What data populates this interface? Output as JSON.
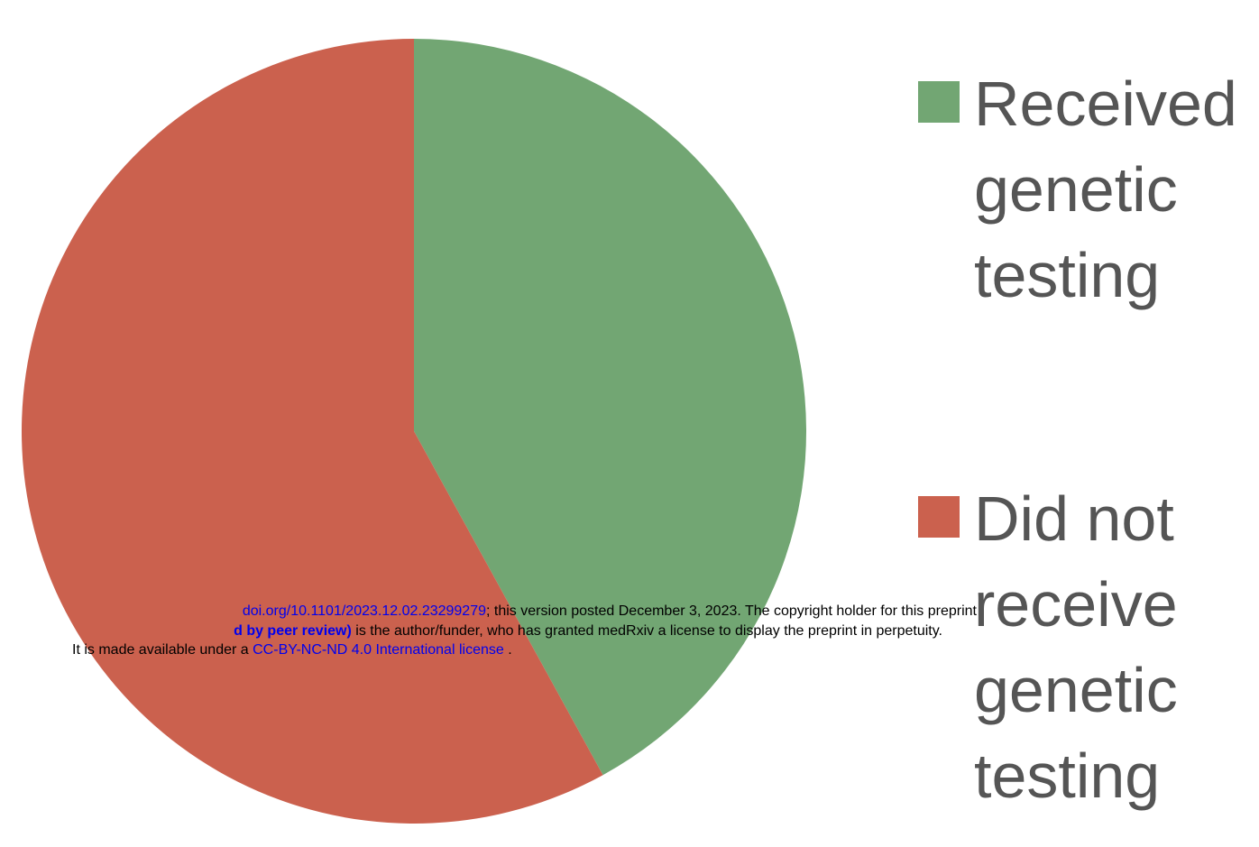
{
  "chart_data": {
    "type": "pie",
    "categories": [
      "Received genetic testing",
      "Did not receive genetic testing"
    ],
    "values": [
      42,
      58
    ],
    "colors": [
      "#72a673",
      "#cb614e"
    ]
  },
  "watermark": {
    "lines": [
      [
        {
          "text": "doi.org/10.1101/2023.12.02.23299279",
          "style": "link"
        },
        {
          "text": "; this version posted December 3, 2023. The copyright holder for this preprint",
          "style": "plain"
        }
      ],
      [
        {
          "text": "d by peer review)",
          "style": "bold-link"
        },
        {
          "text": " is the author/funder, who has granted medRxiv a license to display the preprint in perpetuity.",
          "style": "plain"
        }
      ],
      [
        {
          "text": "It is made available under a ",
          "style": "plain"
        },
        {
          "text": "CC-BY-NC-ND 4.0 International license",
          "style": "link"
        },
        {
          "text": " .",
          "style": "plain"
        }
      ]
    ]
  }
}
